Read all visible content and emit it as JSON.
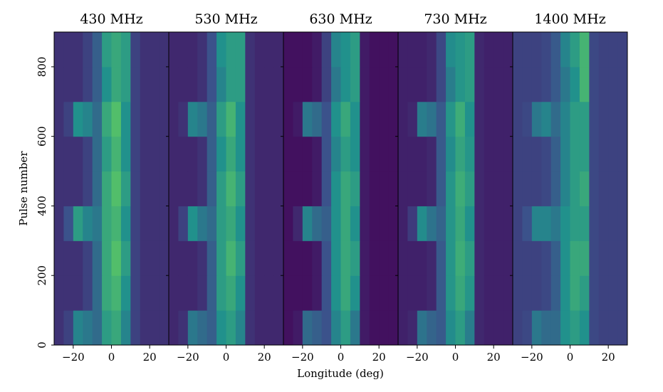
{
  "chart_data": {
    "type": "heatmap",
    "xlabel": "Longitude (deg)",
    "ylabel": "Pulse number",
    "xlim": [
      -30,
      30
    ],
    "xticks": [
      {
        "value": -20,
        "label": "−20"
      },
      0,
      20
    ],
    "ylim": [
      0,
      900
    ],
    "yticks": [
      0,
      200,
      400,
      600,
      800
    ],
    "zlim": [
      0,
      1
    ],
    "colormap": "viridis",
    "panels": [
      {
        "title": "430 MHz",
        "values": [
          [
            0.15,
            0.2,
            0.45,
            0.4,
            0.35,
            0.55,
            0.6,
            0.45,
            0.2,
            0.15,
            0.15,
            0.15
          ],
          [
            0.15,
            0.15,
            0.15,
            0.2,
            0.35,
            0.6,
            0.65,
            0.5,
            0.2,
            0.15,
            0.15,
            0.15
          ],
          [
            0.15,
            0.15,
            0.15,
            0.2,
            0.35,
            0.6,
            0.7,
            0.55,
            0.2,
            0.15,
            0.15,
            0.15
          ],
          [
            0.15,
            0.25,
            0.55,
            0.45,
            0.4,
            0.6,
            0.65,
            0.5,
            0.2,
            0.15,
            0.15,
            0.15
          ],
          [
            0.15,
            0.15,
            0.15,
            0.2,
            0.35,
            0.6,
            0.7,
            0.55,
            0.2,
            0.15,
            0.15,
            0.15
          ],
          [
            0.15,
            0.15,
            0.15,
            0.2,
            0.35,
            0.55,
            0.65,
            0.5,
            0.2,
            0.15,
            0.15,
            0.15
          ],
          [
            0.15,
            0.2,
            0.5,
            0.45,
            0.35,
            0.6,
            0.7,
            0.5,
            0.2,
            0.15,
            0.15,
            0.15
          ],
          [
            0.15,
            0.15,
            0.15,
            0.2,
            0.3,
            0.5,
            0.6,
            0.55,
            0.2,
            0.15,
            0.15,
            0.15
          ],
          [
            0.15,
            0.15,
            0.15,
            0.2,
            0.3,
            0.55,
            0.6,
            0.55,
            0.2,
            0.15,
            0.15,
            0.15
          ]
        ]
      },
      {
        "title": "530 MHz",
        "values": [
          [
            0.12,
            0.15,
            0.4,
            0.35,
            0.3,
            0.5,
            0.55,
            0.45,
            0.15,
            0.12,
            0.12,
            0.12
          ],
          [
            0.12,
            0.12,
            0.12,
            0.15,
            0.3,
            0.55,
            0.6,
            0.5,
            0.15,
            0.12,
            0.12,
            0.12
          ],
          [
            0.12,
            0.12,
            0.12,
            0.15,
            0.3,
            0.55,
            0.65,
            0.55,
            0.15,
            0.12,
            0.12,
            0.12
          ],
          [
            0.12,
            0.2,
            0.5,
            0.4,
            0.35,
            0.55,
            0.6,
            0.5,
            0.15,
            0.12,
            0.12,
            0.12
          ],
          [
            0.12,
            0.12,
            0.12,
            0.15,
            0.3,
            0.55,
            0.65,
            0.55,
            0.15,
            0.12,
            0.12,
            0.12
          ],
          [
            0.12,
            0.12,
            0.12,
            0.15,
            0.3,
            0.5,
            0.6,
            0.5,
            0.15,
            0.12,
            0.12,
            0.12
          ],
          [
            0.12,
            0.15,
            0.45,
            0.4,
            0.3,
            0.55,
            0.65,
            0.5,
            0.15,
            0.12,
            0.12,
            0.12
          ],
          [
            0.12,
            0.12,
            0.12,
            0.15,
            0.25,
            0.45,
            0.55,
            0.55,
            0.15,
            0.12,
            0.12,
            0.12
          ],
          [
            0.12,
            0.12,
            0.12,
            0.15,
            0.25,
            0.5,
            0.55,
            0.55,
            0.15,
            0.12,
            0.12,
            0.12
          ]
        ]
      },
      {
        "title": "630 MHz",
        "values": [
          [
            0.05,
            0.08,
            0.35,
            0.3,
            0.25,
            0.45,
            0.55,
            0.4,
            0.08,
            0.05,
            0.05,
            0.05
          ],
          [
            0.05,
            0.05,
            0.05,
            0.08,
            0.25,
            0.5,
            0.6,
            0.5,
            0.08,
            0.05,
            0.05,
            0.05
          ],
          [
            0.05,
            0.05,
            0.05,
            0.08,
            0.25,
            0.5,
            0.6,
            0.55,
            0.08,
            0.05,
            0.05,
            0.05
          ],
          [
            0.05,
            0.12,
            0.45,
            0.35,
            0.3,
            0.5,
            0.6,
            0.5,
            0.08,
            0.05,
            0.05,
            0.05
          ],
          [
            0.05,
            0.05,
            0.05,
            0.08,
            0.25,
            0.5,
            0.6,
            0.55,
            0.08,
            0.05,
            0.05,
            0.05
          ],
          [
            0.05,
            0.05,
            0.05,
            0.08,
            0.25,
            0.45,
            0.55,
            0.5,
            0.08,
            0.05,
            0.05,
            0.05
          ],
          [
            0.05,
            0.08,
            0.4,
            0.35,
            0.25,
            0.5,
            0.6,
            0.5,
            0.08,
            0.05,
            0.05,
            0.05
          ],
          [
            0.05,
            0.05,
            0.05,
            0.08,
            0.2,
            0.4,
            0.5,
            0.55,
            0.08,
            0.05,
            0.05,
            0.05
          ],
          [
            0.05,
            0.05,
            0.05,
            0.08,
            0.2,
            0.45,
            0.5,
            0.55,
            0.08,
            0.05,
            0.05,
            0.05
          ]
        ]
      },
      {
        "title": "730 MHz",
        "values": [
          [
            0.1,
            0.12,
            0.38,
            0.32,
            0.28,
            0.48,
            0.55,
            0.42,
            0.12,
            0.1,
            0.1,
            0.1
          ],
          [
            0.1,
            0.1,
            0.1,
            0.12,
            0.28,
            0.52,
            0.6,
            0.52,
            0.12,
            0.1,
            0.1,
            0.1
          ],
          [
            0.1,
            0.1,
            0.1,
            0.12,
            0.28,
            0.52,
            0.62,
            0.55,
            0.12,
            0.1,
            0.1,
            0.1
          ],
          [
            0.1,
            0.18,
            0.48,
            0.38,
            0.32,
            0.52,
            0.6,
            0.5,
            0.12,
            0.1,
            0.1,
            0.1
          ],
          [
            0.1,
            0.1,
            0.1,
            0.12,
            0.28,
            0.52,
            0.62,
            0.55,
            0.12,
            0.1,
            0.1,
            0.1
          ],
          [
            0.1,
            0.1,
            0.1,
            0.12,
            0.28,
            0.48,
            0.58,
            0.52,
            0.12,
            0.1,
            0.1,
            0.1
          ],
          [
            0.1,
            0.12,
            0.42,
            0.38,
            0.28,
            0.52,
            0.62,
            0.5,
            0.12,
            0.1,
            0.1,
            0.1
          ],
          [
            0.1,
            0.1,
            0.1,
            0.12,
            0.22,
            0.42,
            0.52,
            0.55,
            0.12,
            0.1,
            0.1,
            0.1
          ],
          [
            0.1,
            0.1,
            0.1,
            0.12,
            0.22,
            0.48,
            0.52,
            0.55,
            0.12,
            0.1,
            0.1,
            0.1
          ]
        ]
      },
      {
        "title": "1400 MHz",
        "values": [
          [
            0.2,
            0.22,
            0.4,
            0.35,
            0.35,
            0.5,
            0.55,
            0.5,
            0.22,
            0.2,
            0.2,
            0.2
          ],
          [
            0.2,
            0.2,
            0.2,
            0.22,
            0.3,
            0.5,
            0.6,
            0.55,
            0.22,
            0.2,
            0.2,
            0.2
          ],
          [
            0.2,
            0.2,
            0.2,
            0.22,
            0.3,
            0.5,
            0.6,
            0.6,
            0.22,
            0.2,
            0.2,
            0.2
          ],
          [
            0.2,
            0.25,
            0.45,
            0.45,
            0.4,
            0.5,
            0.55,
            0.55,
            0.22,
            0.2,
            0.2,
            0.2
          ],
          [
            0.2,
            0.2,
            0.2,
            0.22,
            0.3,
            0.45,
            0.55,
            0.6,
            0.22,
            0.2,
            0.2,
            0.2
          ],
          [
            0.2,
            0.2,
            0.2,
            0.22,
            0.3,
            0.45,
            0.55,
            0.55,
            0.22,
            0.2,
            0.2,
            0.2
          ],
          [
            0.2,
            0.22,
            0.4,
            0.45,
            0.35,
            0.45,
            0.55,
            0.55,
            0.22,
            0.2,
            0.2,
            0.2
          ],
          [
            0.2,
            0.2,
            0.2,
            0.22,
            0.28,
            0.4,
            0.5,
            0.65,
            0.22,
            0.2,
            0.2,
            0.2
          ],
          [
            0.2,
            0.2,
            0.2,
            0.22,
            0.28,
            0.45,
            0.55,
            0.65,
            0.22,
            0.2,
            0.2,
            0.2
          ]
        ]
      }
    ]
  }
}
